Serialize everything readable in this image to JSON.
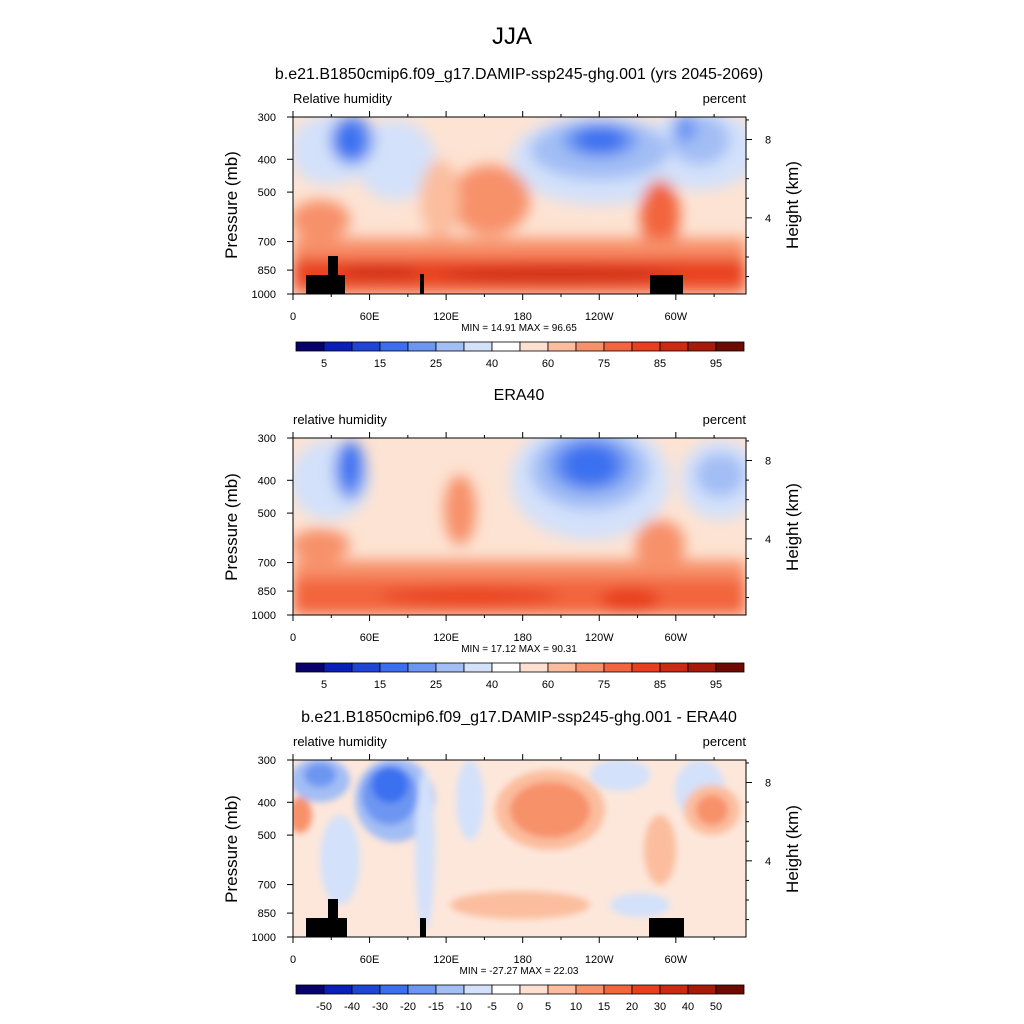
{
  "figure": {
    "title": "JJA"
  },
  "colorbar_fills": {
    "abs": [
      "#08006b",
      "#0a1fb8",
      "#1e45d6",
      "#3b6ff0",
      "#6d96f2",
      "#a3bef5",
      "#d3e1fa",
      "#ffffff",
      "#fde0d1",
      "#fbbd9e",
      "#f7916a",
      "#f2653e",
      "#e8401f",
      "#cc2a12",
      "#a81a0a",
      "#6e0a00"
    ],
    "diff": [
      "#08006b",
      "#0a1fb8",
      "#1e45d6",
      "#3b6ff0",
      "#6d96f2",
      "#a3bef5",
      "#d3e1fa",
      "#ffffff",
      "#fde0d1",
      "#fbbd9e",
      "#f7916a",
      "#f2653e",
      "#e8401f",
      "#cc2a12",
      "#a81a0a",
      "#6e0a00"
    ]
  },
  "chart_data": [
    {
      "type": "heatmap",
      "title": "b.e21.B1850cmip6.f09_g17.DAMIP-ssp245-ghg.001 (yrs 2045-2069)",
      "left_label": "Relative humidity",
      "right_label": "percent",
      "ylabel": "Pressure (mb)",
      "ylabel_right": "Height (km)",
      "x_ticks": [
        "0",
        "60E",
        "120E",
        "180",
        "120W",
        "60W"
      ],
      "x_tick_values": [
        0,
        60,
        120,
        180,
        240,
        300
      ],
      "xlim": [
        0,
        355
      ],
      "y_ticks": [
        "300",
        "400",
        "500",
        "700",
        "850",
        "1000"
      ],
      "y_tick_values": [
        300,
        400,
        500,
        700,
        850,
        1000
      ],
      "ylim": [
        1000,
        300
      ],
      "y_scale": "log",
      "right_ticks": [
        "8",
        "4"
      ],
      "right_tick_values_km": [
        8,
        4
      ],
      "stats": "MIN = 14.91  MAX = 96.65",
      "colorbar_labels": [
        "5",
        "15",
        "25",
        "40",
        "60",
        "75",
        "85",
        "95"
      ],
      "colorbar_levels": [
        5,
        10,
        15,
        20,
        25,
        30,
        40,
        50,
        60,
        65,
        70,
        75,
        80,
        85,
        90,
        95
      ],
      "terrain_masked": true
    },
    {
      "type": "heatmap",
      "title": "ERA40",
      "left_label": "relative humidity",
      "right_label": "percent",
      "ylabel": "Pressure (mb)",
      "ylabel_right": "Height (km)",
      "x_ticks": [
        "0",
        "60E",
        "120E",
        "180",
        "120W",
        "60W"
      ],
      "x_tick_values": [
        0,
        60,
        120,
        180,
        240,
        300
      ],
      "xlim": [
        0,
        355
      ],
      "y_ticks": [
        "300",
        "400",
        "500",
        "700",
        "850",
        "1000"
      ],
      "y_tick_values": [
        300,
        400,
        500,
        700,
        850,
        1000
      ],
      "ylim": [
        1000,
        300
      ],
      "y_scale": "log",
      "right_ticks": [
        "8",
        "4"
      ],
      "right_tick_values_km": [
        8,
        4
      ],
      "stats": "MIN = 17.12  MAX = 90.31",
      "colorbar_labels": [
        "5",
        "15",
        "25",
        "40",
        "60",
        "75",
        "85",
        "95"
      ],
      "colorbar_levels": [
        5,
        10,
        15,
        20,
        25,
        30,
        40,
        50,
        60,
        65,
        70,
        75,
        80,
        85,
        90,
        95
      ],
      "terrain_masked": false
    },
    {
      "type": "heatmap",
      "title": "b.e21.B1850cmip6.f09_g17.DAMIP-ssp245-ghg.001 - ERA40",
      "left_label": "relative humidity",
      "right_label": "percent",
      "ylabel": "Pressure (mb)",
      "ylabel_right": "Height (km)",
      "x_ticks": [
        "0",
        "60E",
        "120E",
        "180",
        "120W",
        "60W"
      ],
      "x_tick_values": [
        0,
        60,
        120,
        180,
        240,
        300
      ],
      "xlim": [
        0,
        355
      ],
      "y_ticks": [
        "300",
        "400",
        "500",
        "700",
        "850",
        "1000"
      ],
      "y_tick_values": [
        300,
        400,
        500,
        700,
        850,
        1000
      ],
      "ylim": [
        1000,
        300
      ],
      "y_scale": "log",
      "right_ticks": [
        "8",
        "4"
      ],
      "right_tick_values_km": [
        8,
        4
      ],
      "stats": "MIN = -27.27  MAX = 22.03",
      "colorbar_labels": [
        "-50",
        "-40",
        "-30",
        "-20",
        "-15",
        "-10",
        "-5",
        "0",
        "5",
        "10",
        "15",
        "20",
        "30",
        "40",
        "50"
      ],
      "colorbar_levels": [
        -50,
        -40,
        -30,
        -20,
        -15,
        -10,
        -5,
        0,
        5,
        10,
        15,
        20,
        30,
        40,
        50
      ],
      "terrain_masked": true
    }
  ]
}
